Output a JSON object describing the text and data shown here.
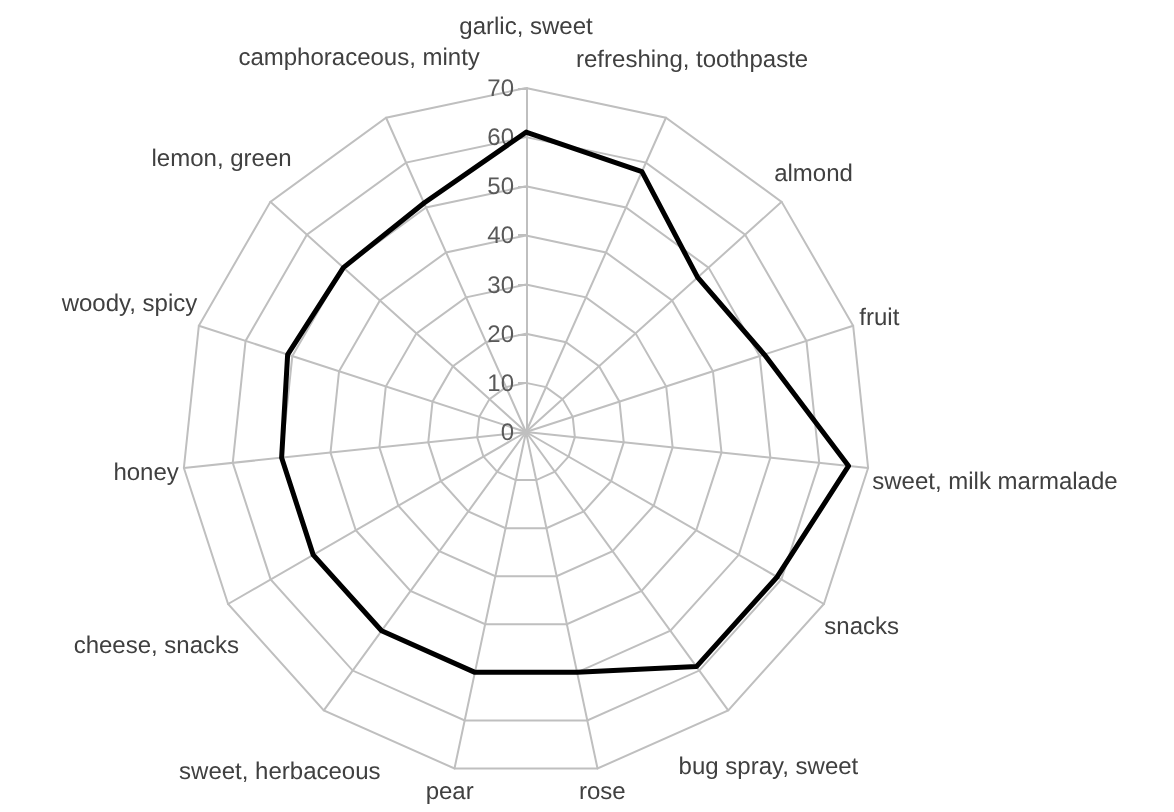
{
  "chart_data": {
    "type": "radar",
    "categories": [
      "garlic, sweet",
      "refreshing, toothpaste",
      "almond",
      "fruit",
      "sweet, milk marmalade",
      "snacks",
      "bug spray, sweet",
      "rose",
      "pear",
      "sweet, herbaceous",
      "cheese, snacks",
      "honey",
      "woody, spicy",
      "lemon, green",
      "camphoraceous, minty"
    ],
    "series": [
      {
        "color": "#000000",
        "values": [
          61,
          58,
          47,
          51,
          66,
          59,
          59,
          50,
          50,
          50,
          50,
          50,
          51,
          50,
          51
        ]
      }
    ],
    "ylim": [
      0,
      70
    ],
    "yticks": [
      0,
      10,
      20,
      30,
      40,
      50,
      60,
      70
    ],
    "grid": true,
    "marker": "none",
    "line_style": "solid"
  }
}
